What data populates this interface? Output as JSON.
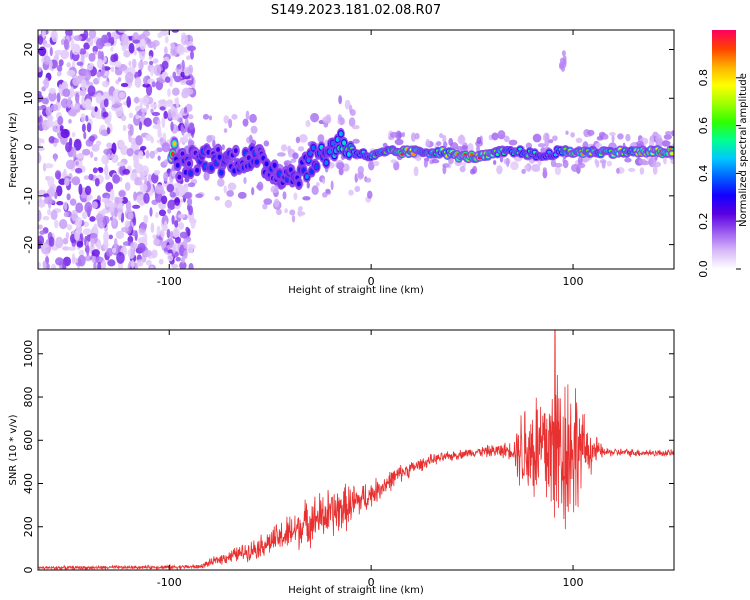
{
  "figure_title": "S149.2023.181.02.08.R07",
  "chart_data": [
    {
      "type": "heatmap",
      "xlabel": "Height of straight line (km)",
      "ylabel": "Frequency (Hz)",
      "xlim": [
        -165,
        150
      ],
      "ylim": [
        -25,
        24
      ],
      "x_ticks": [
        -100,
        0,
        100
      ],
      "y_ticks": [
        -20,
        -10,
        0,
        10,
        20
      ],
      "colorbar": {
        "label": "Normalized spectral amplitude",
        "range": [
          0,
          1
        ],
        "ticks": [
          "0.0",
          "0.2",
          "0.4",
          "0.6",
          "0.8"
        ],
        "colors": [
          "#ffffff",
          "#d8b8f8",
          "#9b5cf0",
          "#5a00e0",
          "#1400ff",
          "#0060ff",
          "#00c8ff",
          "#00ff90",
          "#30ff00",
          "#a0ff00",
          "#ffff00",
          "#ffb000",
          "#ff4000",
          "#ff0060"
        ]
      },
      "noise_region_x": [
        -165,
        -88
      ],
      "track": [
        {
          "x": -97,
          "f": -4,
          "amp": 0.3
        },
        {
          "x": -88,
          "f": -3,
          "amp": 0.33
        },
        {
          "x": -80,
          "f": -2,
          "amp": 0.35
        },
        {
          "x": -72,
          "f": -3,
          "amp": 0.32
        },
        {
          "x": -63,
          "f": -2,
          "amp": 0.36
        },
        {
          "x": -55,
          "f": -3,
          "amp": 0.34
        },
        {
          "x": -47,
          "f": -5,
          "amp": 0.33
        },
        {
          "x": -38,
          "f": -6,
          "amp": 0.35
        },
        {
          "x": -30,
          "f": -3,
          "amp": 0.42
        },
        {
          "x": -22,
          "f": -1,
          "amp": 0.46
        },
        {
          "x": -15,
          "f": 1,
          "amp": 0.55
        },
        {
          "x": -8,
          "f": -1,
          "amp": 0.6
        },
        {
          "x": 0,
          "f": -2,
          "amp": 0.62
        },
        {
          "x": 8,
          "f": -1,
          "amp": 0.7
        },
        {
          "x": 15,
          "f": -1,
          "amp": 0.92
        },
        {
          "x": 25,
          "f": -1,
          "amp": 0.72
        },
        {
          "x": 35,
          "f": -1,
          "amp": 0.68
        },
        {
          "x": 45,
          "f": -2,
          "amp": 0.9
        },
        {
          "x": 55,
          "f": -2,
          "amp": 0.92
        },
        {
          "x": 65,
          "f": -1,
          "amp": 0.66
        },
        {
          "x": 75,
          "f": -1,
          "amp": 0.62
        },
        {
          "x": 85,
          "f": -2,
          "amp": 0.55
        },
        {
          "x": 92,
          "f": -1,
          "amp": 0.5
        },
        {
          "x": 100,
          "f": -1,
          "amp": 0.9
        },
        {
          "x": 110,
          "f": -1,
          "amp": 0.78
        },
        {
          "x": 120,
          "f": -1,
          "amp": 0.74
        },
        {
          "x": 130,
          "f": -1,
          "amp": 0.76
        },
        {
          "x": 140,
          "f": -1,
          "amp": 0.88
        },
        {
          "x": 148,
          "f": -1,
          "amp": 0.9
        }
      ]
    },
    {
      "type": "line",
      "xlabel": "Height of straight line (km)",
      "ylabel": "SNR (10 * v/v)",
      "xlim": [
        -165,
        150
      ],
      "ylim": [
        0,
        1110
      ],
      "x_ticks": [
        -100,
        0,
        100
      ],
      "y_ticks": [
        0,
        200,
        400,
        600,
        800,
        1000
      ],
      "line_color": "#e83030",
      "envelope": [
        {
          "x": -165,
          "snr": 10,
          "noise": 8
        },
        {
          "x": -120,
          "snr": 12,
          "noise": 8
        },
        {
          "x": -85,
          "snr": 15,
          "noise": 10
        },
        {
          "x": -75,
          "snr": 50,
          "noise": 25
        },
        {
          "x": -60,
          "snr": 90,
          "noise": 45
        },
        {
          "x": -50,
          "snr": 130,
          "noise": 60
        },
        {
          "x": -40,
          "snr": 170,
          "noise": 90
        },
        {
          "x": -30,
          "snr": 230,
          "noise": 110
        },
        {
          "x": -20,
          "snr": 260,
          "noise": 120
        },
        {
          "x": -10,
          "snr": 300,
          "noise": 100
        },
        {
          "x": 0,
          "snr": 350,
          "noise": 60
        },
        {
          "x": 15,
          "snr": 450,
          "noise": 40
        },
        {
          "x": 30,
          "snr": 510,
          "noise": 25
        },
        {
          "x": 50,
          "snr": 545,
          "noise": 20
        },
        {
          "x": 70,
          "snr": 555,
          "noise": 40
        },
        {
          "x": 75,
          "snr": 560,
          "noise": 230
        },
        {
          "x": 85,
          "snr": 560,
          "noise": 320
        },
        {
          "x": 92,
          "snr": 560,
          "noise": 420
        },
        {
          "x": 100,
          "snr": 570,
          "noise": 380
        },
        {
          "x": 105,
          "snr": 560,
          "noise": 160
        },
        {
          "x": 115,
          "snr": 545,
          "noise": 20
        },
        {
          "x": 150,
          "snr": 540,
          "noise": 15
        }
      ],
      "peak": {
        "x": 91,
        "snr": 1110
      }
    }
  ]
}
